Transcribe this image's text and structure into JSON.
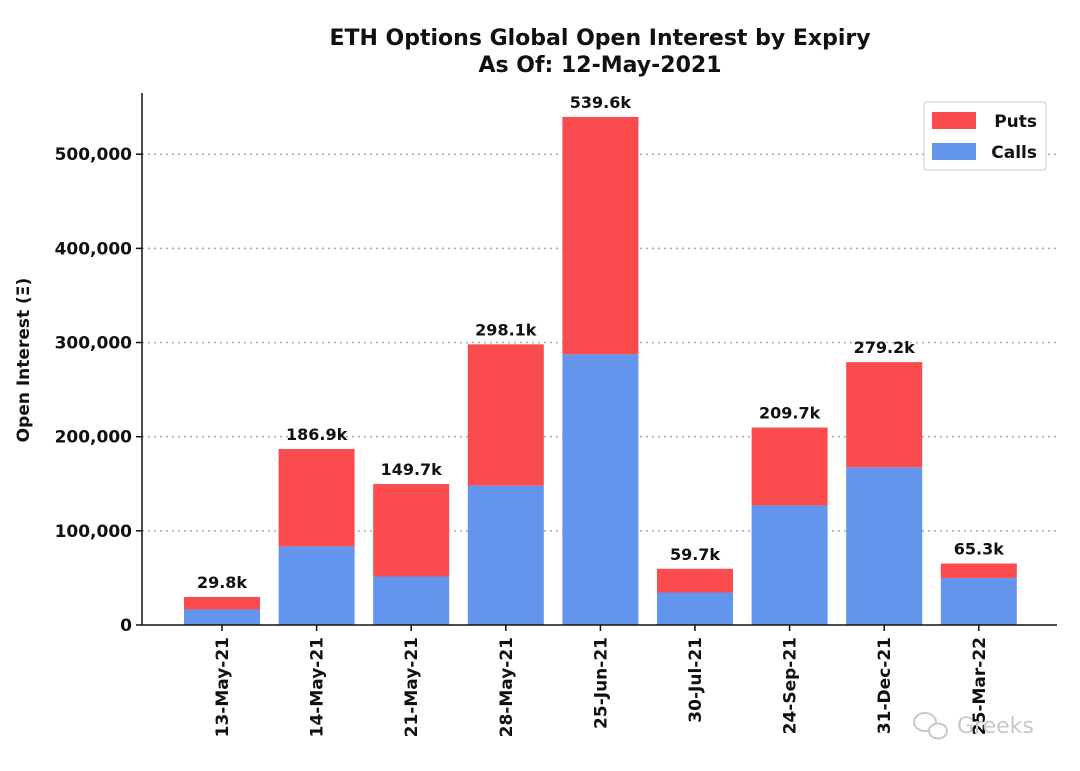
{
  "chart_data": {
    "type": "bar",
    "stacked": true,
    "title": "ETH Options Global Open Interest by Expiry",
    "subtitle": "As Of: 12-May-2021",
    "xlabel": "",
    "ylabel": "Open Interest (Ξ)",
    "ylim": [
      0,
      565000
    ],
    "yticks": [
      0,
      100000,
      200000,
      300000,
      400000,
      500000
    ],
    "ytick_labels": [
      "0",
      "100,000",
      "200,000",
      "300,000",
      "400,000",
      "500,000"
    ],
    "grid": "horizontal dotted",
    "legend_position": "top-right",
    "categories": [
      "13-May-21",
      "14-May-21",
      "21-May-21",
      "28-May-21",
      "25-Jun-21",
      "30-Jul-21",
      "24-Sep-21",
      "31-Dec-21",
      "25-Mar-22"
    ],
    "series": [
      {
        "name": "Calls",
        "color": "#6495ed",
        "values": [
          16500,
          83500,
          51500,
          148000,
          287500,
          34500,
          127000,
          167500,
          50000
        ]
      },
      {
        "name": "Puts",
        "color": "#fa4b4e",
        "values": [
          13300,
          103400,
          98200,
          150100,
          252100,
          25200,
          82700,
          111700,
          15300
        ]
      }
    ],
    "totals": [
      29800,
      186900,
      149700,
      298100,
      539600,
      59700,
      209700,
      279200,
      65300
    ],
    "total_labels": [
      "29.8k",
      "186.9k",
      "149.7k",
      "298.1k",
      "539.6k",
      "59.7k",
      "209.7k",
      "279.2k",
      "65.3k"
    ]
  },
  "watermark": "Greeks"
}
